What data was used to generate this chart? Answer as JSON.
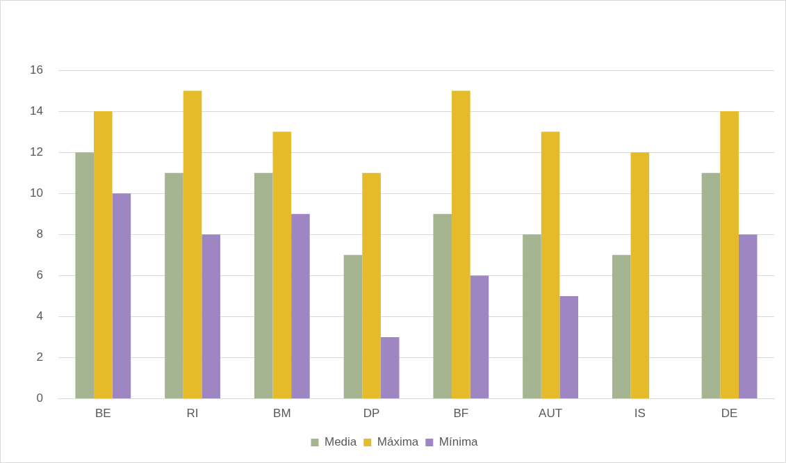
{
  "chart_data": {
    "type": "bar",
    "categories": [
      "BE",
      "RI",
      "BM",
      "DP",
      "BF",
      "AUT",
      "IS",
      "DE"
    ],
    "series": [
      {
        "name": "Media",
        "color": "#a5b592",
        "values": [
          12,
          11,
          11,
          7,
          9,
          8,
          7,
          11
        ]
      },
      {
        "name": "Máxima",
        "color": "#e5bb2b",
        "values": [
          14,
          15,
          13,
          11,
          15,
          13,
          12,
          14
        ]
      },
      {
        "name": "Mínima",
        "color": "#9d86c2",
        "values": [
          10,
          8,
          9,
          3,
          6,
          5,
          null,
          8
        ]
      }
    ],
    "ylim": [
      0,
      16
    ],
    "yticks": [
      0,
      2,
      4,
      6,
      8,
      10,
      12,
      14,
      16
    ],
    "grid": "y",
    "legend": "bottom"
  }
}
